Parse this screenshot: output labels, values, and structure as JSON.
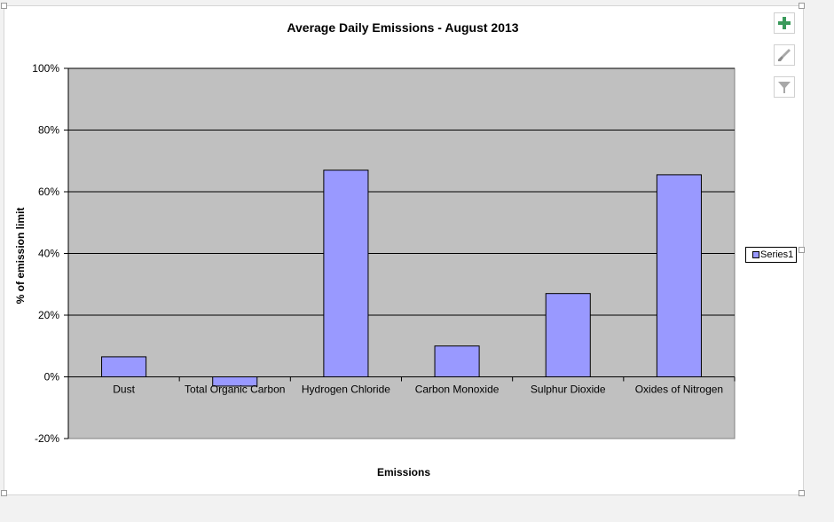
{
  "chart_data": {
    "type": "bar",
    "title": "Average Daily Emissions - August 2013",
    "xlabel": "Emissions",
    "ylabel": "% of emission limit",
    "categories": [
      "Dust",
      "Total Organic Carbon",
      "Hydrogen Chloride",
      "Carbon Monoxide",
      "Sulphur Dioxide",
      "Oxides of Nitrogen"
    ],
    "series": [
      {
        "name": "Series1",
        "values": [
          6.5,
          -3,
          67,
          10,
          27,
          65.5
        ]
      }
    ],
    "ylim": [
      -20,
      100
    ],
    "yticks": [
      -20,
      0,
      20,
      40,
      60,
      80,
      100
    ],
    "ytick_labels": [
      "-20%",
      "0%",
      "20%",
      "40%",
      "60%",
      "80%",
      "100%"
    ],
    "grid": true,
    "legend": "right",
    "colors": {
      "bar": "#9999ff",
      "plot_background": "#c0c0c0"
    }
  },
  "toolbar": {
    "icons": [
      "plus-icon",
      "paintbrush-icon",
      "filter-icon"
    ]
  }
}
